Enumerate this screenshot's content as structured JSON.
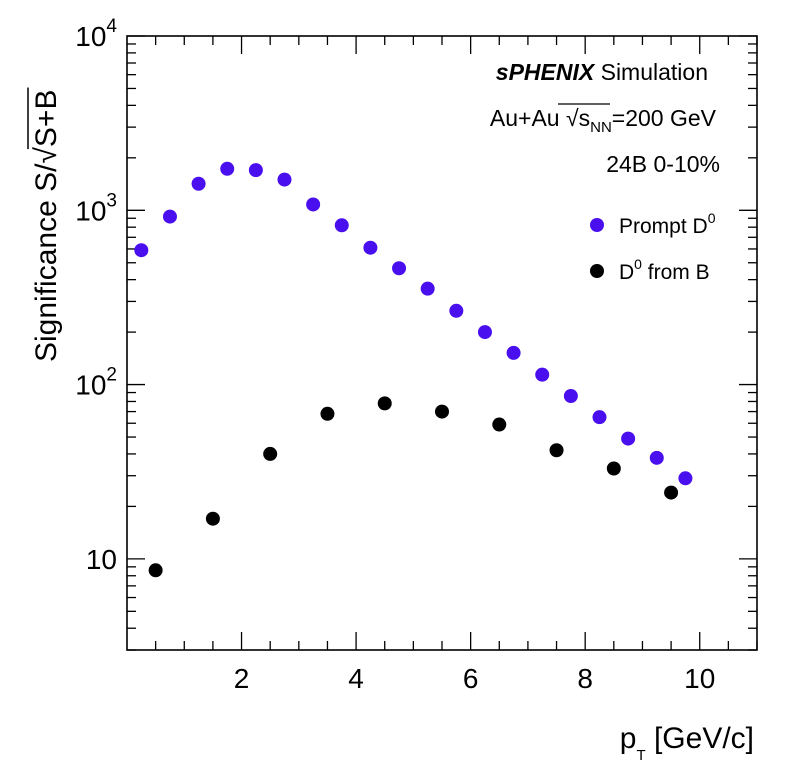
{
  "chart_data": {
    "type": "scatter",
    "x_axis": {
      "label_main": "p",
      "label_sub": "T",
      "label_rest": " [GeV/c]",
      "range": [
        0,
        11
      ],
      "ticks": [
        {
          "value": 2,
          "label": "2"
        },
        {
          "value": 4,
          "label": "4"
        },
        {
          "value": 6,
          "label": "6"
        },
        {
          "value": 8,
          "label": "8"
        },
        {
          "value": 10,
          "label": "10"
        }
      ]
    },
    "y_axis": {
      "scale": "log",
      "label_main": "Significance S/",
      "label_radical": "√",
      "label_radicand": "S+B",
      "range": [
        3,
        10000
      ],
      "ticks": [
        {
          "value": 10,
          "label": "10",
          "exp": ""
        },
        {
          "value": 100,
          "label": "10",
          "exp": "2"
        },
        {
          "value": 1000,
          "label": "10",
          "exp": "3"
        },
        {
          "value": 10000,
          "label": "10",
          "exp": "4"
        }
      ]
    },
    "annotations": {
      "brand": "sPHENIX",
      "simulation": "Simulation",
      "system_prefix": "Au+Au",
      "sqrt_symbol": "√",
      "s": "s",
      "s_sub": "NN",
      "energy": "=200 GeV",
      "dataset": "24B 0-10%"
    },
    "series": [
      {
        "name": "Prompt D",
        "name_sup": "0",
        "color": "#4a0fef",
        "points": [
          {
            "x": 0.25,
            "y": 590
          },
          {
            "x": 0.75,
            "y": 920
          },
          {
            "x": 1.25,
            "y": 1420
          },
          {
            "x": 1.75,
            "y": 1730
          },
          {
            "x": 2.25,
            "y": 1700
          },
          {
            "x": 2.75,
            "y": 1500
          },
          {
            "x": 3.25,
            "y": 1080
          },
          {
            "x": 3.75,
            "y": 820
          },
          {
            "x": 4.25,
            "y": 610
          },
          {
            "x": 4.75,
            "y": 465
          },
          {
            "x": 5.25,
            "y": 355
          },
          {
            "x": 5.75,
            "y": 265
          },
          {
            "x": 6.25,
            "y": 200
          },
          {
            "x": 6.75,
            "y": 152
          },
          {
            "x": 7.25,
            "y": 114
          },
          {
            "x": 7.75,
            "y": 86
          },
          {
            "x": 8.25,
            "y": 65
          },
          {
            "x": 8.75,
            "y": 49
          },
          {
            "x": 9.25,
            "y": 38
          },
          {
            "x": 9.75,
            "y": 29
          }
        ]
      },
      {
        "name": "D",
        "name_sup": "0",
        "name_rest": " from B",
        "color": "#000000",
        "points": [
          {
            "x": 0.5,
            "y": 8.6
          },
          {
            "x": 1.5,
            "y": 17
          },
          {
            "x": 2.5,
            "y": 40
          },
          {
            "x": 3.5,
            "y": 68
          },
          {
            "x": 4.5,
            "y": 78
          },
          {
            "x": 5.5,
            "y": 70
          },
          {
            "x": 6.5,
            "y": 59
          },
          {
            "x": 7.5,
            "y": 42
          },
          {
            "x": 8.5,
            "y": 33
          },
          {
            "x": 9.5,
            "y": 24
          }
        ]
      }
    ],
    "legend_position": "top-right",
    "grid": false
  }
}
